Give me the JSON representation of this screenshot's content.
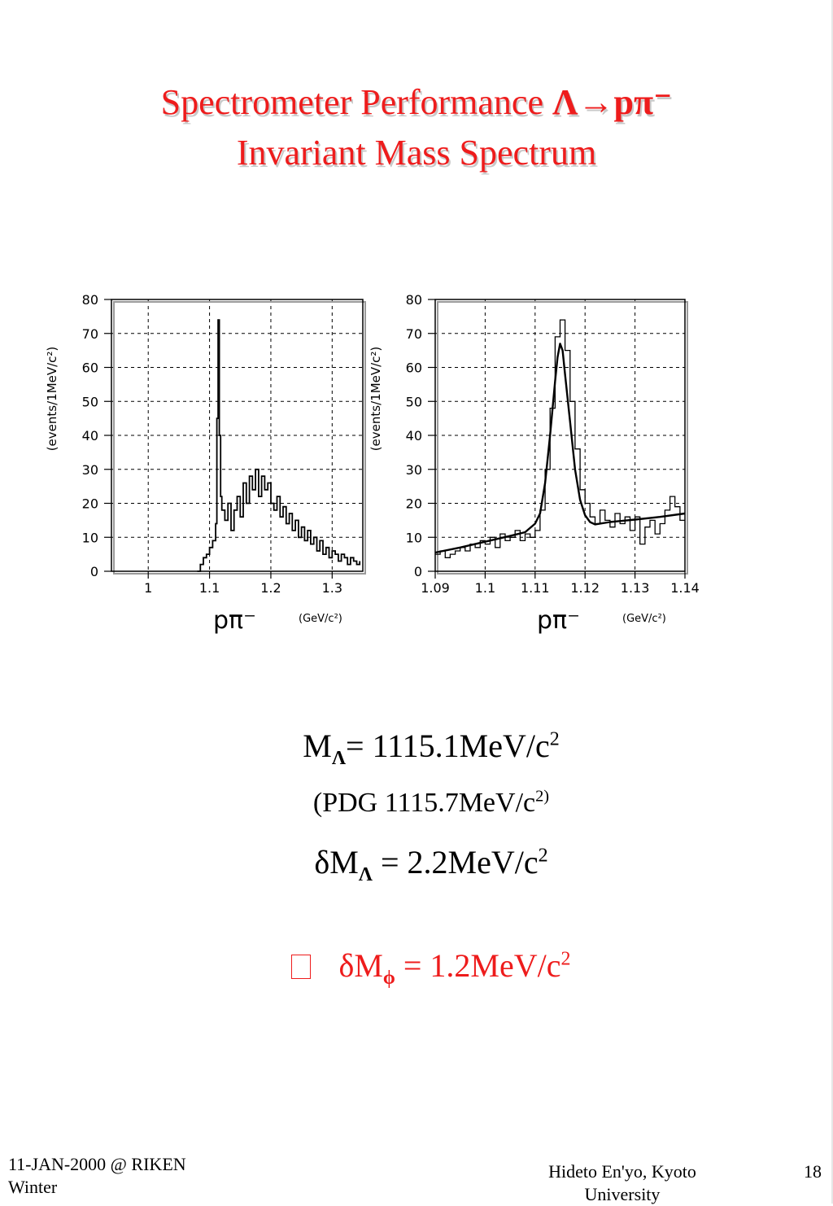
{
  "slide": {
    "title_line1_prefix": "Spectrometer Performance ",
    "title_line1_formula": "Λ→pπ⁻",
    "title_line2": "Invariant Mass Spectrum",
    "mass_prefix": "M",
    "mass_sub": "Λ",
    "mass_value": "= 1115.1MeV/c",
    "mass_sup": "2",
    "pdg_text": "(PDG 1115.7MeV/c",
    "pdg_sup": "2)",
    "resolution_prefix": "δM",
    "resolution_sub": "Λ",
    "resolution_value": " = 2.2MeV/c",
    "resolution_sup": "2",
    "phi_prefix": "δM",
    "phi_sub": "ϕ",
    "phi_value": " = 1.2MeV/c",
    "phi_sup": "2",
    "footer_left": "11-JAN-2000 @ RIKEN Winter",
    "footer_center": "Hideto En'yo, Kyoto University",
    "page_number": "18",
    "accent_color": "#ee1c1c"
  },
  "chart_data": [
    {
      "type": "histogram",
      "ylabel": "(events/1MeV/c²)",
      "xlabel": "pπ⁻",
      "xunit": "(GeV/c²)",
      "xlim": [
        0.94,
        1.35
      ],
      "ylim": [
        0,
        80
      ],
      "xticks": [
        "1",
        "1.1",
        "1.2",
        "1.3"
      ],
      "yticks": [
        "0",
        "10",
        "20",
        "30",
        "40",
        "50",
        "60",
        "70",
        "80"
      ],
      "grid": true,
      "x": [
        1.08,
        1.085,
        1.09,
        1.095,
        1.1,
        1.105,
        1.11,
        1.112,
        1.114,
        1.116,
        1.118,
        1.12,
        1.125,
        1.13,
        1.135,
        1.14,
        1.145,
        1.15,
        1.155,
        1.16,
        1.165,
        1.17,
        1.175,
        1.18,
        1.185,
        1.19,
        1.195,
        1.2,
        1.205,
        1.21,
        1.215,
        1.22,
        1.225,
        1.23,
        1.235,
        1.24,
        1.245,
        1.25,
        1.255,
        1.26,
        1.265,
        1.27,
        1.275,
        1.28,
        1.285,
        1.29,
        1.295,
        1.3,
        1.305,
        1.31,
        1.315,
        1.32,
        1.325,
        1.33,
        1.335,
        1.34,
        1.345
      ],
      "y": [
        0,
        2,
        4,
        5,
        7,
        9,
        14,
        45,
        74,
        40,
        22,
        18,
        15,
        20,
        12,
        18,
        22,
        16,
        26,
        20,
        28,
        24,
        30,
        22,
        28,
        24,
        26,
        20,
        18,
        22,
        16,
        19,
        14,
        17,
        12,
        15,
        10,
        13,
        9,
        12,
        8,
        10,
        6,
        9,
        5,
        7,
        4,
        6,
        5,
        3,
        5,
        4,
        2,
        4,
        3,
        2,
        3
      ]
    },
    {
      "type": "histogram",
      "ylabel": "(events/1MeV/c²)",
      "xlabel": "pπ⁻",
      "xunit": "(GeV/c²)",
      "xlim": [
        1.09,
        1.14
      ],
      "ylim": [
        0,
        80
      ],
      "xticks": [
        "1.09",
        "1.1",
        "1.11",
        "1.12",
        "1.13",
        "1.14"
      ],
      "yticks": [
        "0",
        "10",
        "20",
        "30",
        "40",
        "50",
        "60",
        "70",
        "80"
      ],
      "grid": true,
      "bin_starts": [
        1.09,
        1.091,
        1.092,
        1.093,
        1.094,
        1.095,
        1.096,
        1.097,
        1.098,
        1.099,
        1.1,
        1.101,
        1.102,
        1.103,
        1.104,
        1.105,
        1.106,
        1.107,
        1.108,
        1.109,
        1.11,
        1.111,
        1.112,
        1.113,
        1.114,
        1.115,
        1.116,
        1.117,
        1.118,
        1.119,
        1.12,
        1.121,
        1.122,
        1.123,
        1.124,
        1.125,
        1.126,
        1.127,
        1.128,
        1.129,
        1.13,
        1.131,
        1.132,
        1.133,
        1.134,
        1.135,
        1.136,
        1.137,
        1.138,
        1.139
      ],
      "counts": [
        5,
        6,
        4,
        5,
        6,
        7,
        6,
        8,
        7,
        9,
        8,
        10,
        7,
        11,
        9,
        10,
        12,
        9,
        11,
        10,
        12,
        18,
        30,
        48,
        69,
        74,
        65,
        50,
        36,
        24,
        20,
        16,
        14,
        18,
        15,
        13,
        17,
        14,
        16,
        12,
        16,
        8,
        13,
        15,
        11,
        14,
        18,
        22,
        19,
        15
      ],
      "fit_x": [
        1.09,
        1.095,
        1.1,
        1.105,
        1.108,
        1.11,
        1.111,
        1.112,
        1.113,
        1.114,
        1.1145,
        1.115,
        1.1155,
        1.116,
        1.117,
        1.118,
        1.119,
        1.12,
        1.121,
        1.122,
        1.125,
        1.13,
        1.135,
        1.14
      ],
      "fit_y": [
        5.5,
        7,
        8.7,
        10.4,
        11.5,
        14,
        17,
        26,
        40,
        56,
        63,
        67,
        65,
        58,
        44,
        30,
        21,
        16.5,
        14.5,
        13.8,
        14.5,
        15.2,
        16,
        17
      ]
    }
  ]
}
